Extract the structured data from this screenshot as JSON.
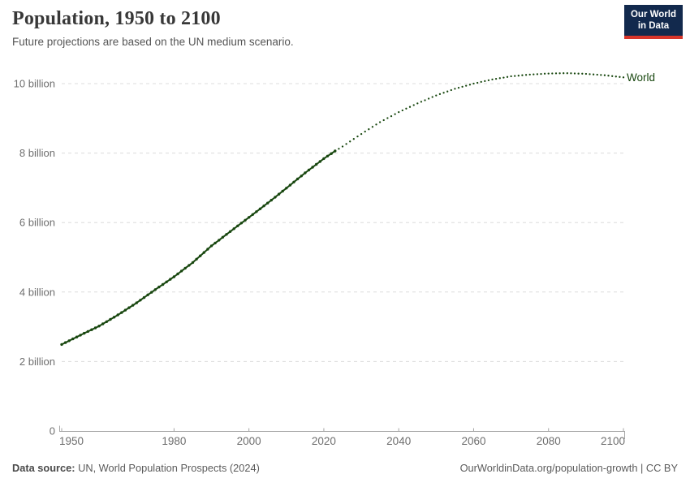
{
  "header": {
    "title": "Population, 1950 to 2100",
    "subtitle": "Future projections are based on the UN medium scenario.",
    "logo": {
      "line1": "Our World",
      "line2": "in Data",
      "bg_color": "#12294d",
      "accent_color": "#d8352a"
    }
  },
  "chart_data": {
    "type": "line",
    "title": "Population, 1950 to 2100",
    "xlabel": "",
    "ylabel": "",
    "x_range": [
      1950,
      2100
    ],
    "x_ticks": [
      1950,
      1980,
      2000,
      2020,
      2040,
      2060,
      2080,
      2100
    ],
    "y_range": [
      0,
      10.6
    ],
    "y_unit": "billion people",
    "y_ticks": [
      {
        "value": 0,
        "label": "0"
      },
      {
        "value": 2,
        "label": "2 billion"
      },
      {
        "value": 4,
        "label": "4 billion"
      },
      {
        "value": 6,
        "label": "6 billion"
      },
      {
        "value": 8,
        "label": "8 billion"
      },
      {
        "value": 10,
        "label": "10 billion"
      }
    ],
    "grid": "horizontal-dashed",
    "legend_position": "end-of-line",
    "end_label": "World",
    "series": [
      {
        "name": "World (estimates)",
        "style": "solid-with-markers",
        "color": "#18470f",
        "x": [
          1950,
          1955,
          1960,
          1965,
          1970,
          1975,
          1980,
          1985,
          1990,
          1995,
          2000,
          2005,
          2010,
          2015,
          2020,
          2023
        ],
        "y": [
          2.49,
          2.76,
          3.02,
          3.34,
          3.69,
          4.07,
          4.44,
          4.85,
          5.33,
          5.74,
          6.15,
          6.56,
          6.99,
          7.43,
          7.84,
          8.06
        ]
      },
      {
        "name": "World (UN medium projection)",
        "style": "dotted",
        "color": "#18470f",
        "x": [
          2023,
          2025,
          2030,
          2035,
          2040,
          2045,
          2050,
          2055,
          2060,
          2065,
          2070,
          2075,
          2080,
          2085,
          2090,
          2095,
          2100
        ],
        "y": [
          8.06,
          8.19,
          8.55,
          8.89,
          9.18,
          9.43,
          9.66,
          9.85,
          10.0,
          10.12,
          10.21,
          10.26,
          10.29,
          10.3,
          10.28,
          10.24,
          10.18
        ]
      }
    ],
    "colors": {
      "line": "#18470f",
      "grid": "#dcdcdc",
      "axis": "#a5a5a5",
      "tick_label": "#6e6e6e"
    }
  },
  "footer": {
    "source_label": "Data source:",
    "source_text": " UN, World Population Prospects (2024)",
    "link_text": "OurWorldinData.org/population-growth | CC BY"
  }
}
